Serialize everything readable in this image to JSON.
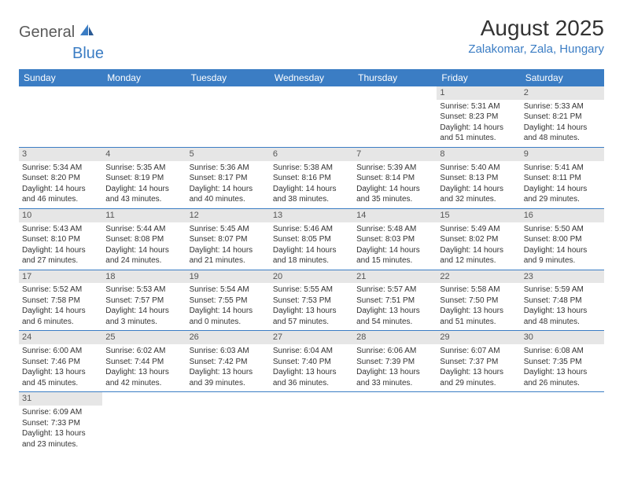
{
  "logo": {
    "general": "General",
    "blue": "Blue"
  },
  "title": "August 2025",
  "location": "Zalakomar, Zala, Hungary",
  "colors": {
    "header_bg": "#3b7dc4",
    "header_fg": "#ffffff",
    "daynum_bg": "#e6e6e6",
    "border": "#3b7dc4"
  },
  "weekdays": [
    "Sunday",
    "Monday",
    "Tuesday",
    "Wednesday",
    "Thursday",
    "Friday",
    "Saturday"
  ],
  "weeks": [
    [
      null,
      null,
      null,
      null,
      null,
      {
        "n": "1",
        "sr": "Sunrise: 5:31 AM",
        "ss": "Sunset: 8:23 PM",
        "dl1": "Daylight: 14 hours",
        "dl2": "and 51 minutes."
      },
      {
        "n": "2",
        "sr": "Sunrise: 5:33 AM",
        "ss": "Sunset: 8:21 PM",
        "dl1": "Daylight: 14 hours",
        "dl2": "and 48 minutes."
      }
    ],
    [
      {
        "n": "3",
        "sr": "Sunrise: 5:34 AM",
        "ss": "Sunset: 8:20 PM",
        "dl1": "Daylight: 14 hours",
        "dl2": "and 46 minutes."
      },
      {
        "n": "4",
        "sr": "Sunrise: 5:35 AM",
        "ss": "Sunset: 8:19 PM",
        "dl1": "Daylight: 14 hours",
        "dl2": "and 43 minutes."
      },
      {
        "n": "5",
        "sr": "Sunrise: 5:36 AM",
        "ss": "Sunset: 8:17 PM",
        "dl1": "Daylight: 14 hours",
        "dl2": "and 40 minutes."
      },
      {
        "n": "6",
        "sr": "Sunrise: 5:38 AM",
        "ss": "Sunset: 8:16 PM",
        "dl1": "Daylight: 14 hours",
        "dl2": "and 38 minutes."
      },
      {
        "n": "7",
        "sr": "Sunrise: 5:39 AM",
        "ss": "Sunset: 8:14 PM",
        "dl1": "Daylight: 14 hours",
        "dl2": "and 35 minutes."
      },
      {
        "n": "8",
        "sr": "Sunrise: 5:40 AM",
        "ss": "Sunset: 8:13 PM",
        "dl1": "Daylight: 14 hours",
        "dl2": "and 32 minutes."
      },
      {
        "n": "9",
        "sr": "Sunrise: 5:41 AM",
        "ss": "Sunset: 8:11 PM",
        "dl1": "Daylight: 14 hours",
        "dl2": "and 29 minutes."
      }
    ],
    [
      {
        "n": "10",
        "sr": "Sunrise: 5:43 AM",
        "ss": "Sunset: 8:10 PM",
        "dl1": "Daylight: 14 hours",
        "dl2": "and 27 minutes."
      },
      {
        "n": "11",
        "sr": "Sunrise: 5:44 AM",
        "ss": "Sunset: 8:08 PM",
        "dl1": "Daylight: 14 hours",
        "dl2": "and 24 minutes."
      },
      {
        "n": "12",
        "sr": "Sunrise: 5:45 AM",
        "ss": "Sunset: 8:07 PM",
        "dl1": "Daylight: 14 hours",
        "dl2": "and 21 minutes."
      },
      {
        "n": "13",
        "sr": "Sunrise: 5:46 AM",
        "ss": "Sunset: 8:05 PM",
        "dl1": "Daylight: 14 hours",
        "dl2": "and 18 minutes."
      },
      {
        "n": "14",
        "sr": "Sunrise: 5:48 AM",
        "ss": "Sunset: 8:03 PM",
        "dl1": "Daylight: 14 hours",
        "dl2": "and 15 minutes."
      },
      {
        "n": "15",
        "sr": "Sunrise: 5:49 AM",
        "ss": "Sunset: 8:02 PM",
        "dl1": "Daylight: 14 hours",
        "dl2": "and 12 minutes."
      },
      {
        "n": "16",
        "sr": "Sunrise: 5:50 AM",
        "ss": "Sunset: 8:00 PM",
        "dl1": "Daylight: 14 hours",
        "dl2": "and 9 minutes."
      }
    ],
    [
      {
        "n": "17",
        "sr": "Sunrise: 5:52 AM",
        "ss": "Sunset: 7:58 PM",
        "dl1": "Daylight: 14 hours",
        "dl2": "and 6 minutes."
      },
      {
        "n": "18",
        "sr": "Sunrise: 5:53 AM",
        "ss": "Sunset: 7:57 PM",
        "dl1": "Daylight: 14 hours",
        "dl2": "and 3 minutes."
      },
      {
        "n": "19",
        "sr": "Sunrise: 5:54 AM",
        "ss": "Sunset: 7:55 PM",
        "dl1": "Daylight: 14 hours",
        "dl2": "and 0 minutes."
      },
      {
        "n": "20",
        "sr": "Sunrise: 5:55 AM",
        "ss": "Sunset: 7:53 PM",
        "dl1": "Daylight: 13 hours",
        "dl2": "and 57 minutes."
      },
      {
        "n": "21",
        "sr": "Sunrise: 5:57 AM",
        "ss": "Sunset: 7:51 PM",
        "dl1": "Daylight: 13 hours",
        "dl2": "and 54 minutes."
      },
      {
        "n": "22",
        "sr": "Sunrise: 5:58 AM",
        "ss": "Sunset: 7:50 PM",
        "dl1": "Daylight: 13 hours",
        "dl2": "and 51 minutes."
      },
      {
        "n": "23",
        "sr": "Sunrise: 5:59 AM",
        "ss": "Sunset: 7:48 PM",
        "dl1": "Daylight: 13 hours",
        "dl2": "and 48 minutes."
      }
    ],
    [
      {
        "n": "24",
        "sr": "Sunrise: 6:00 AM",
        "ss": "Sunset: 7:46 PM",
        "dl1": "Daylight: 13 hours",
        "dl2": "and 45 minutes."
      },
      {
        "n": "25",
        "sr": "Sunrise: 6:02 AM",
        "ss": "Sunset: 7:44 PM",
        "dl1": "Daylight: 13 hours",
        "dl2": "and 42 minutes."
      },
      {
        "n": "26",
        "sr": "Sunrise: 6:03 AM",
        "ss": "Sunset: 7:42 PM",
        "dl1": "Daylight: 13 hours",
        "dl2": "and 39 minutes."
      },
      {
        "n": "27",
        "sr": "Sunrise: 6:04 AM",
        "ss": "Sunset: 7:40 PM",
        "dl1": "Daylight: 13 hours",
        "dl2": "and 36 minutes."
      },
      {
        "n": "28",
        "sr": "Sunrise: 6:06 AM",
        "ss": "Sunset: 7:39 PM",
        "dl1": "Daylight: 13 hours",
        "dl2": "and 33 minutes."
      },
      {
        "n": "29",
        "sr": "Sunrise: 6:07 AM",
        "ss": "Sunset: 7:37 PM",
        "dl1": "Daylight: 13 hours",
        "dl2": "and 29 minutes."
      },
      {
        "n": "30",
        "sr": "Sunrise: 6:08 AM",
        "ss": "Sunset: 7:35 PM",
        "dl1": "Daylight: 13 hours",
        "dl2": "and 26 minutes."
      }
    ],
    [
      {
        "n": "31",
        "sr": "Sunrise: 6:09 AM",
        "ss": "Sunset: 7:33 PM",
        "dl1": "Daylight: 13 hours",
        "dl2": "and 23 minutes."
      },
      null,
      null,
      null,
      null,
      null,
      null
    ]
  ]
}
